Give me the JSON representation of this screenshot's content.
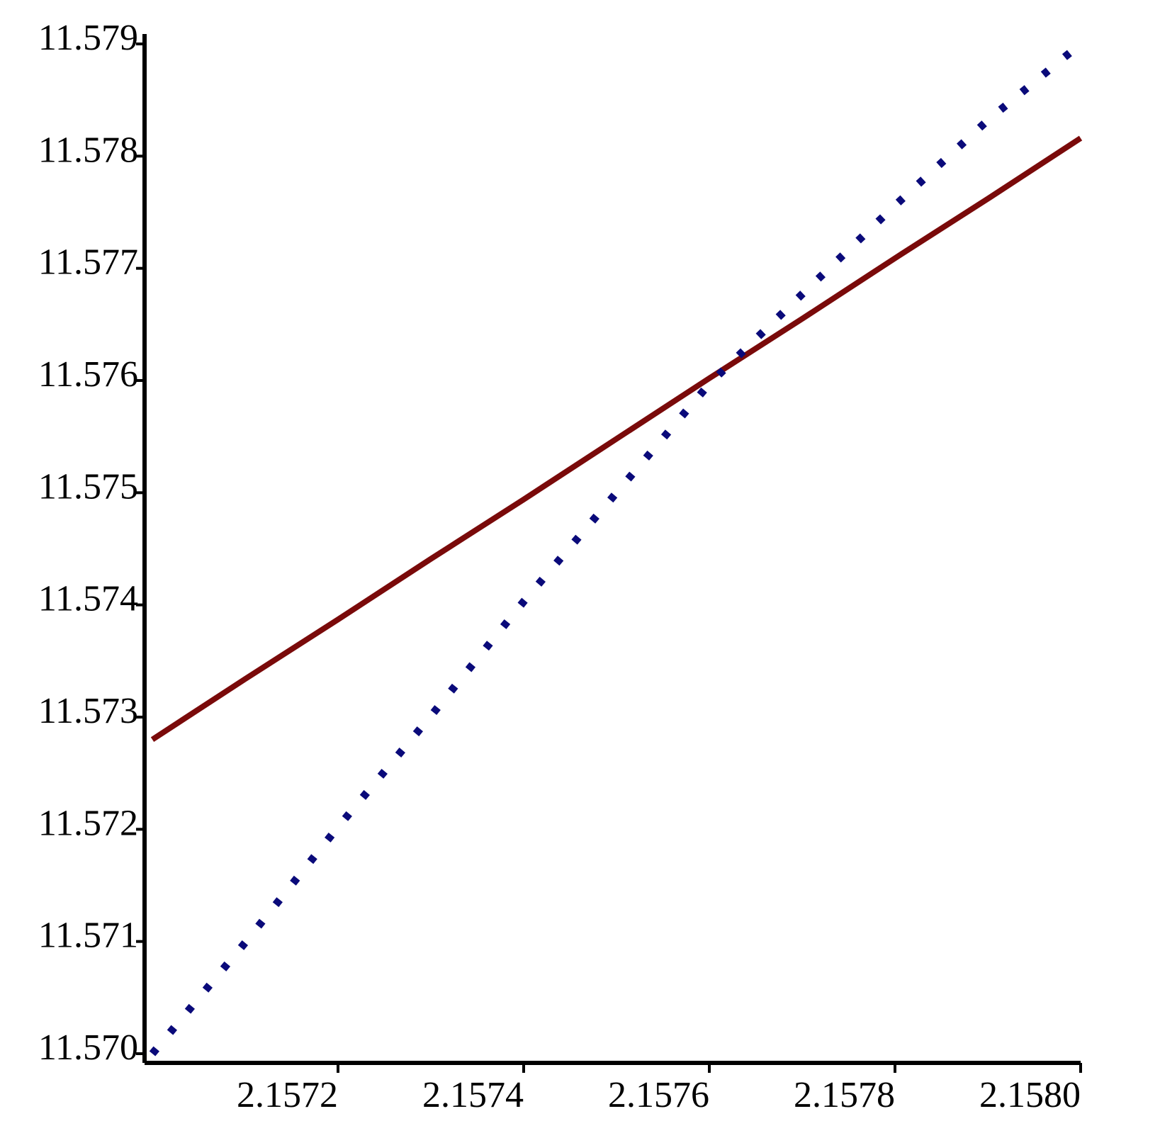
{
  "chart_data": {
    "type": "line",
    "x": [
      2.157,
      2.1571,
      2.1572,
      2.1573,
      2.1574,
      2.1575,
      2.1576,
      2.1577,
      2.1578,
      2.1579,
      2.158
    ],
    "series": [
      {
        "color": "#7a0a0a",
        "style": "solid",
        "values": [
          11.5728,
          11.57334,
          11.57387,
          11.57441,
          11.57494,
          11.57548,
          11.57602,
          11.57655,
          11.57709,
          11.57762,
          11.57816
        ]
      },
      {
        "color": "#0a0a7a",
        "style": "dotted",
        "values": [
          11.57,
          11.57099,
          11.57202,
          11.57301,
          11.57403,
          11.575,
          11.57597,
          11.57677,
          11.57756,
          11.57832,
          11.579
        ]
      }
    ],
    "xlim": [
      2.157,
      2.158
    ],
    "ylim": [
      11.57,
      11.579
    ],
    "xticks": [
      2.1572,
      2.1574,
      2.1576,
      2.1578,
      {
        "value": 2.158,
        "label": "2.1580"
      }
    ],
    "yticks": [
      {
        "value": 11.57,
        "label": "11.570"
      },
      11.571,
      11.572,
      11.573,
      11.574,
      11.575,
      11.576,
      11.577,
      11.578,
      11.579
    ]
  }
}
